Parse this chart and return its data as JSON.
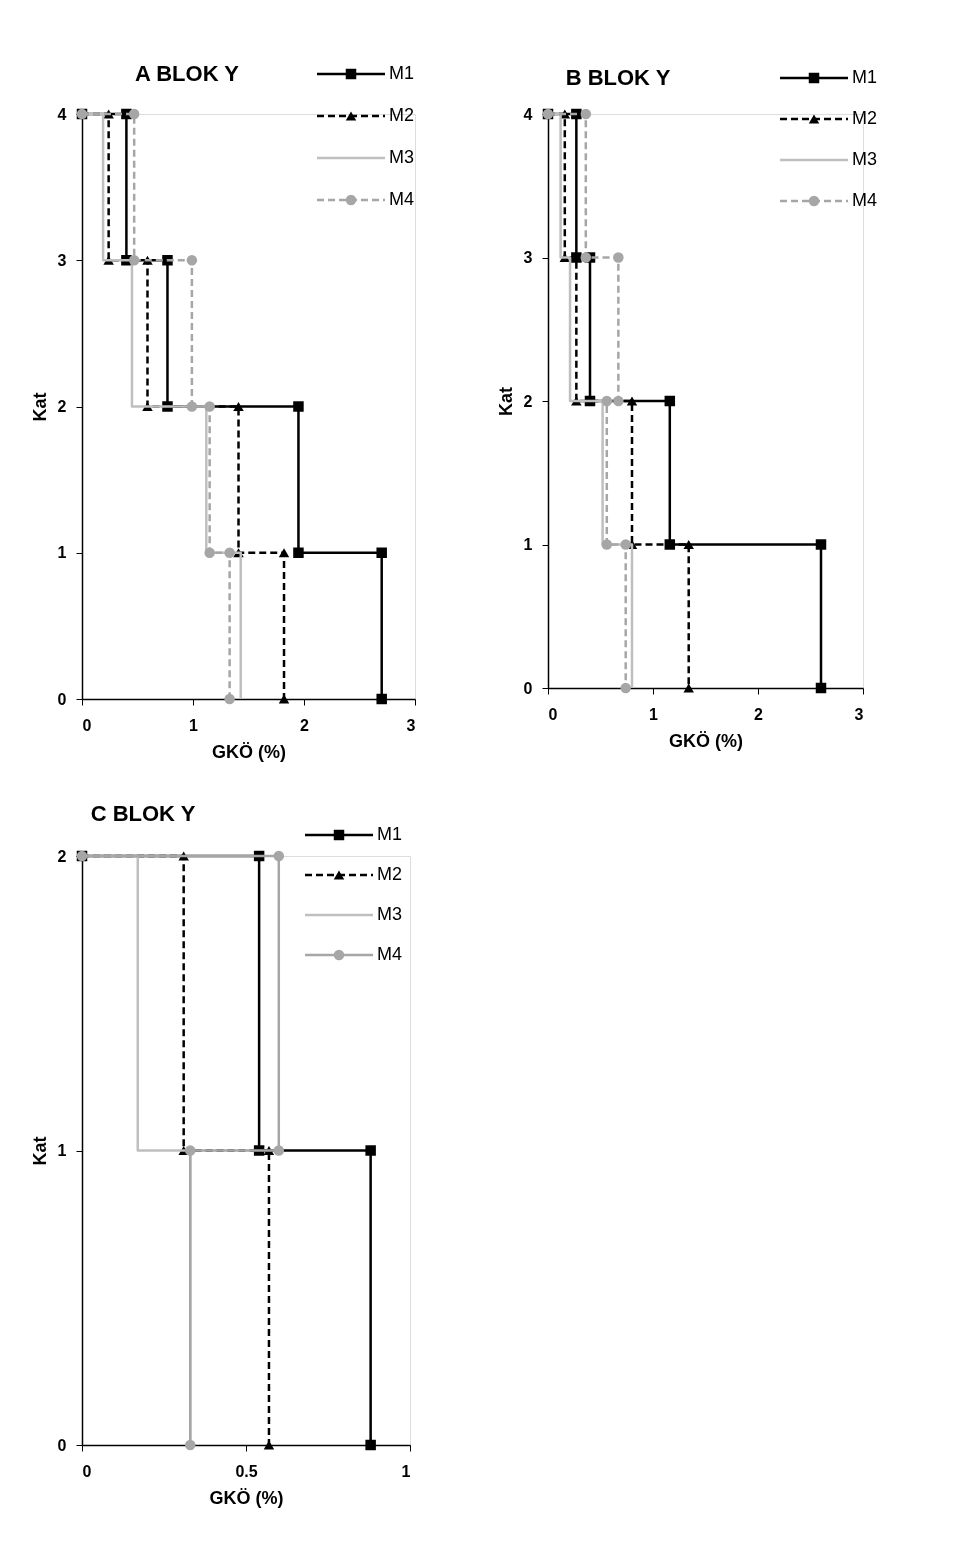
{
  "chart_data": [
    {
      "type": "line",
      "title": "A BLOK Y",
      "xlabel": "GKÖ (%)",
      "ylabel": "Kat",
      "xlim": [
        0,
        3
      ],
      "ylim": [
        0,
        4
      ],
      "xticks": [
        0,
        1,
        2,
        3
      ],
      "yticks": [
        0,
        1,
        2,
        3,
        4
      ],
      "legend": "top right",
      "series": [
        {
          "name": "M1",
          "color": "#000000",
          "marker": "square",
          "line_style": "solid",
          "x": [
            0,
            0.4,
            0.4,
            0.77,
            0.77,
            1.95,
            1.95,
            2.7,
            2.7
          ],
          "values": [
            4,
            4,
            3,
            3,
            2,
            2,
            1,
            1,
            0
          ]
        },
        {
          "name": "M2",
          "color": "#000000",
          "marker": "triangle",
          "line_style": "dashed",
          "x": [
            0,
            0.24,
            0.24,
            0.59,
            0.59,
            1.41,
            1.41,
            1.82,
            1.82
          ],
          "values": [
            4,
            4,
            3,
            3,
            2,
            2,
            1,
            1,
            0
          ]
        },
        {
          "name": "M3",
          "color": "#bfbfbf",
          "marker": "none",
          "line_style": "solid",
          "x": [
            0,
            0.19,
            0.19,
            0.45,
            0.45,
            1.12,
            1.12,
            1.43,
            1.43
          ],
          "values": [
            4,
            4,
            3,
            3,
            2,
            2,
            1,
            1,
            0
          ]
        },
        {
          "name": "M4",
          "color": "#a6a6a6",
          "marker": "circle",
          "line_style": "dashed",
          "x": [
            0,
            0.47,
            0.47,
            0.99,
            0.99,
            1.15,
            1.15,
            1.33,
            1.33
          ],
          "values": [
            4,
            4,
            3,
            3,
            2,
            2,
            1,
            1,
            0
          ]
        }
      ]
    },
    {
      "type": "line",
      "title": "B BLOK Y",
      "xlabel": "GKÖ (%)",
      "ylabel": "Kat",
      "xlim": [
        0,
        3
      ],
      "ylim": [
        0,
        4
      ],
      "xticks": [
        0,
        1,
        2,
        3
      ],
      "yticks": [
        0,
        1,
        2,
        3,
        4
      ],
      "legend": "top right",
      "series": [
        {
          "name": "M1",
          "color": "#000000",
          "marker": "square",
          "line_style": "solid",
          "x": [
            0,
            0.27,
            0.27,
            0.4,
            0.4,
            1.16,
            1.16,
            2.6,
            2.6
          ],
          "values": [
            4,
            4,
            3,
            3,
            2,
            2,
            1,
            1,
            0
          ]
        },
        {
          "name": "M2",
          "color": "#000000",
          "marker": "triangle",
          "line_style": "dashed",
          "x": [
            0,
            0.16,
            0.16,
            0.27,
            0.27,
            0.8,
            0.8,
            1.34,
            1.34
          ],
          "values": [
            4,
            4,
            3,
            3,
            2,
            2,
            1,
            1,
            0
          ]
        },
        {
          "name": "M3",
          "color": "#bfbfbf",
          "marker": "none",
          "line_style": "solid",
          "x": [
            0,
            0.12,
            0.12,
            0.21,
            0.21,
            0.52,
            0.52,
            0.8,
            0.8
          ],
          "values": [
            4,
            4,
            3,
            3,
            2,
            2,
            1,
            1,
            0
          ]
        },
        {
          "name": "M4",
          "color": "#a6a6a6",
          "marker": "circle",
          "line_style": "dashed",
          "x": [
            0,
            0.36,
            0.36,
            0.67,
            0.67,
            0.56,
            0.56,
            0.74,
            0.74
          ],
          "values": [
            4,
            4,
            3,
            3,
            2,
            2,
            1,
            1,
            0
          ]
        }
      ]
    },
    {
      "type": "line",
      "title": "C BLOK Y",
      "xlabel": "GKÖ (%)",
      "ylabel": "Kat",
      "xlim": [
        0,
        1
      ],
      "ylim": [
        0,
        2
      ],
      "xticks": [
        0,
        0.5,
        1
      ],
      "yticks": [
        0,
        1,
        2
      ],
      "legend": "top right",
      "series": [
        {
          "name": "M1",
          "color": "#000000",
          "marker": "square",
          "line_style": "solid",
          "x": [
            0,
            0.54,
            0.54,
            0.88,
            0.88
          ],
          "values": [
            2,
            2,
            1,
            1,
            0
          ]
        },
        {
          "name": "M2",
          "color": "#000000",
          "marker": "triangle",
          "line_style": "dashed",
          "x": [
            0,
            0.31,
            0.31,
            0.57,
            0.57
          ],
          "values": [
            2,
            2,
            1,
            1,
            0
          ]
        },
        {
          "name": "M3",
          "color": "#bfbfbf",
          "marker": "none",
          "line_style": "solid",
          "x": [
            0,
            0.17,
            0.17,
            0.33,
            0.33
          ],
          "values": [
            2,
            2,
            1,
            1,
            0
          ]
        },
        {
          "name": "M4",
          "color": "#a6a6a6",
          "marker": "circle",
          "line_style": "solid",
          "x": [
            0,
            0.6,
            0.6,
            0.33,
            0.33
          ],
          "values": [
            2,
            2,
            1,
            1,
            0
          ]
        }
      ]
    }
  ]
}
